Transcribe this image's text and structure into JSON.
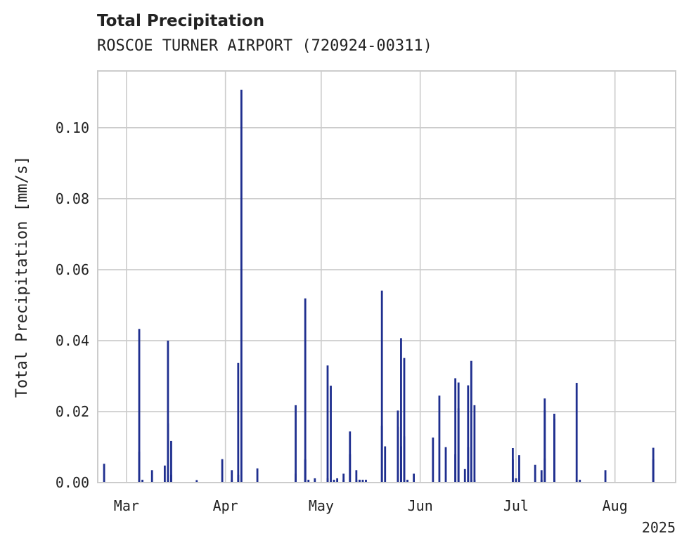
{
  "chart_data": {
    "type": "bar",
    "title": "Total Precipitation",
    "subtitle": "ROSCOE TURNER AIRPORT (720924-00311)",
    "xlabel": "",
    "ylabel": "Total Precipitation [mm/s]",
    "ylim": [
      0,
      0.116
    ],
    "yticks": [
      0.0,
      0.02,
      0.04,
      0.06,
      0.08,
      0.1
    ],
    "ytick_labels": [
      "0.00",
      "0.02",
      "0.04",
      "0.06",
      "0.08",
      "0.10"
    ],
    "xlim": [
      "2025-02-20",
      "2025-08-20"
    ],
    "xticks": [
      "2025-03-01",
      "2025-04-01",
      "2025-05-01",
      "2025-06-01",
      "2025-07-01",
      "2025-08-01"
    ],
    "xtick_labels": [
      "Mar",
      "Apr",
      "May",
      "Jun",
      "Jul",
      "Aug"
    ],
    "x_offset_label": "2025",
    "grid": true,
    "bar_color": "#1f2f8f",
    "series": [
      {
        "x": [
          "2025-02-22",
          "2025-03-05",
          "2025-03-05",
          "2025-03-05",
          "2025-03-06",
          "2025-03-09",
          "2025-03-13",
          "2025-03-14",
          "2025-03-14",
          "2025-03-14",
          "2025-03-15",
          "2025-03-15",
          "2025-03-23",
          "2025-03-31",
          "2025-04-03",
          "2025-04-03",
          "2025-04-05",
          "2025-04-05",
          "2025-04-06",
          "2025-04-11",
          "2025-04-23",
          "2025-04-23",
          "2025-04-26",
          "2025-04-26",
          "2025-04-26",
          "2025-04-27",
          "2025-04-29",
          "2025-05-03",
          "2025-05-03",
          "2025-05-04",
          "2025-05-05",
          "2025-05-06",
          "2025-05-08",
          "2025-05-08",
          "2025-05-10",
          "2025-05-10",
          "2025-05-12",
          "2025-05-12",
          "2025-05-13",
          "2025-05-13",
          "2025-05-14",
          "2025-05-15",
          "2025-05-20",
          "2025-05-20",
          "2025-05-21",
          "2025-05-25",
          "2025-05-25",
          "2025-05-26",
          "2025-05-26",
          "2025-05-26",
          "2025-05-27",
          "2025-05-27",
          "2025-05-28",
          "2025-05-30",
          "2025-06-05",
          "2025-06-07",
          "2025-06-09",
          "2025-06-12",
          "2025-06-12",
          "2025-06-13",
          "2025-06-13",
          "2025-06-15",
          "2025-06-16",
          "2025-06-16",
          "2025-06-17",
          "2025-06-17",
          "2025-06-18",
          "2025-06-18",
          "2025-06-30",
          "2025-06-30",
          "2025-07-01",
          "2025-07-02",
          "2025-07-07",
          "2025-07-09",
          "2025-07-09",
          "2025-07-10",
          "2025-07-10",
          "2025-07-10",
          "2025-07-13",
          "2025-07-13",
          "2025-07-13",
          "2025-07-13",
          "2025-07-20",
          "2025-07-21",
          "2025-07-29",
          "2025-08-13",
          "2025-08-13"
        ],
        "values": [
          0.0053,
          0.0087,
          0.0433,
          0.0008,
          0.0008,
          0.0035,
          0.0048,
          0.0022,
          0.0167,
          0.04,
          0.0117,
          0.0022,
          0.0007,
          0.0066,
          0.0035,
          0.0008,
          0.0337,
          0.0022,
          0.1107,
          0.004,
          0.0218,
          0.0025,
          0.0064,
          0.0519,
          0.0066,
          0.0008,
          0.0012,
          0.033,
          0.0012,
          0.0273,
          0.0008,
          0.0012,
          0.0025,
          0.0008,
          0.008,
          0.0144,
          0.0008,
          0.0035,
          0.0008,
          0.0008,
          0.0008,
          0.0008,
          0.016,
          0.0541,
          0.0102,
          0.0203,
          0.0157,
          0.004,
          0.0102,
          0.0407,
          0.0351,
          0.013,
          0.0008,
          0.0025,
          0.0127,
          0.0245,
          0.01,
          0.0294,
          0.008,
          0.0282,
          0.0209,
          0.0038,
          0.01,
          0.0274,
          0.0008,
          0.0343,
          0.0218,
          0.0008,
          0.0065,
          0.0097,
          0.0012,
          0.0077,
          0.005,
          0.0035,
          0.0008,
          0.0068,
          0.0204,
          0.0237,
          0.018,
          0.0194,
          0.0008,
          0.0008,
          0.0281,
          0.0008,
          0.0035,
          0.0098,
          0.0065
        ]
      }
    ]
  }
}
